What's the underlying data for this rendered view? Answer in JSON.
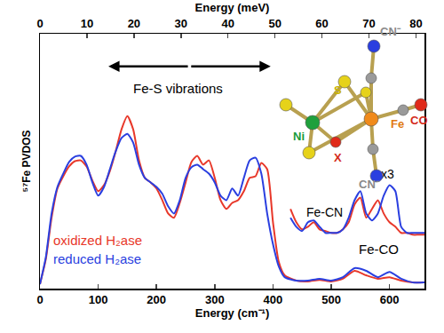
{
  "chart_data": {
    "type": "line",
    "x_label": "Energy (cm⁻¹)",
    "x2_label": "Energy (meV)",
    "y_label": "⁵⁷Fe PVDOS",
    "xlim": [
      0,
      660
    ],
    "xticks": [
      0,
      100,
      200,
      300,
      400,
      500,
      600
    ],
    "x2lim": [
      0,
      81.8
    ],
    "x2ticks": [
      0,
      10,
      20,
      30,
      40,
      50,
      60,
      70,
      80
    ],
    "ylim": [
      0,
      0.96
    ],
    "tick_labels": "x",
    "grid": false,
    "legend": "lower left",
    "x": [
      0,
      10,
      20,
      30,
      40,
      50,
      60,
      70,
      80,
      90,
      100,
      110,
      120,
      130,
      140,
      150,
      160,
      170,
      180,
      190,
      200,
      210,
      220,
      230,
      240,
      250,
      260,
      270,
      280,
      290,
      300,
      310,
      320,
      330,
      340,
      350,
      360,
      370,
      380,
      390,
      400,
      410,
      420,
      440,
      460,
      480,
      500,
      520,
      540,
      560,
      580,
      600,
      620,
      640,
      660
    ],
    "series": [
      {
        "name": "oxidized H₂ase",
        "color": "#e8382a",
        "values": [
          0.017,
          0.11,
          0.267,
          0.377,
          0.423,
          0.46,
          0.48,
          0.483,
          0.46,
          0.407,
          0.367,
          0.39,
          0.443,
          0.517,
          0.6,
          0.65,
          0.6,
          0.483,
          0.417,
          0.4,
          0.377,
          0.333,
          0.283,
          0.267,
          0.323,
          0.4,
          0.477,
          0.5,
          0.467,
          0.483,
          0.417,
          0.333,
          0.3,
          0.323,
          0.333,
          0.367,
          0.417,
          0.423,
          0.473,
          0.45,
          0.25,
          0.1,
          0.05,
          0.03,
          0.027,
          0.033,
          0.027,
          0.037,
          0.067,
          0.05,
          0.037,
          0.043,
          0.03,
          0.023,
          0.023
        ]
      },
      {
        "name": "reduced H₂ase",
        "color": "#2a3fe0",
        "values": [
          0.017,
          0.117,
          0.283,
          0.383,
          0.433,
          0.477,
          0.497,
          0.5,
          0.467,
          0.4,
          0.35,
          0.383,
          0.45,
          0.517,
          0.567,
          0.583,
          0.55,
          0.467,
          0.417,
          0.4,
          0.383,
          0.357,
          0.31,
          0.283,
          0.333,
          0.417,
          0.457,
          0.467,
          0.45,
          0.433,
          0.4,
          0.35,
          0.333,
          0.377,
          0.35,
          0.417,
          0.483,
          0.493,
          0.433,
          0.283,
          0.167,
          0.083,
          0.043,
          0.03,
          0.03,
          0.037,
          0.03,
          0.043,
          0.077,
          0.067,
          0.043,
          0.063,
          0.037,
          0.023,
          0.023
        ]
      }
    ],
    "insets": [
      {
        "label": "Fe-CN",
        "scale_label": "x3",
        "x": [
          430,
          440,
          450,
          460,
          470,
          480,
          490,
          500,
          510,
          520,
          530,
          540,
          550,
          560,
          570,
          580,
          590,
          600,
          610,
          620,
          630,
          640,
          650,
          660
        ],
        "series": [
          {
            "name": "oxidized H₂ase",
            "color": "#e8382a",
            "values": [
              0.3,
              0.25,
              0.223,
              0.233,
              0.25,
              0.223,
              0.217,
              0.21,
              0.21,
              0.223,
              0.25,
              0.317,
              0.343,
              0.267,
              0.3,
              0.333,
              0.283,
              0.25,
              0.233,
              0.21,
              0.21,
              0.203,
              0.203,
              0.203
            ]
          },
          {
            "name": "reduced H₂ase",
            "color": "#2a3fe0",
            "values": [
              0.267,
              0.233,
              0.217,
              0.25,
              0.257,
              0.233,
              0.21,
              0.21,
              0.21,
              0.223,
              0.267,
              0.333,
              0.367,
              0.283,
              0.257,
              0.283,
              0.35,
              0.39,
              0.367,
              0.233,
              0.21,
              0.21,
              0.21,
              0.21
            ]
          }
        ]
      }
    ],
    "annotations": [
      {
        "text": "Fe-CO"
      },
      {
        "text": "Fe-S vibrations"
      }
    ],
    "structure": {
      "labels": [
        {
          "text": "S",
          "color": "#c9b400"
        },
        {
          "text": "Ni",
          "color": "#1a9a3a"
        },
        {
          "text": "Fe",
          "color": "#e07a10"
        },
        {
          "text": "X",
          "color": "#d42a1a"
        },
        {
          "text": "CN⁻",
          "color": "#8a8a8a"
        },
        {
          "text": "CN⁻",
          "color": "#8a8a8a"
        },
        {
          "text": "CO",
          "color": "#d42a1a"
        }
      ]
    }
  }
}
